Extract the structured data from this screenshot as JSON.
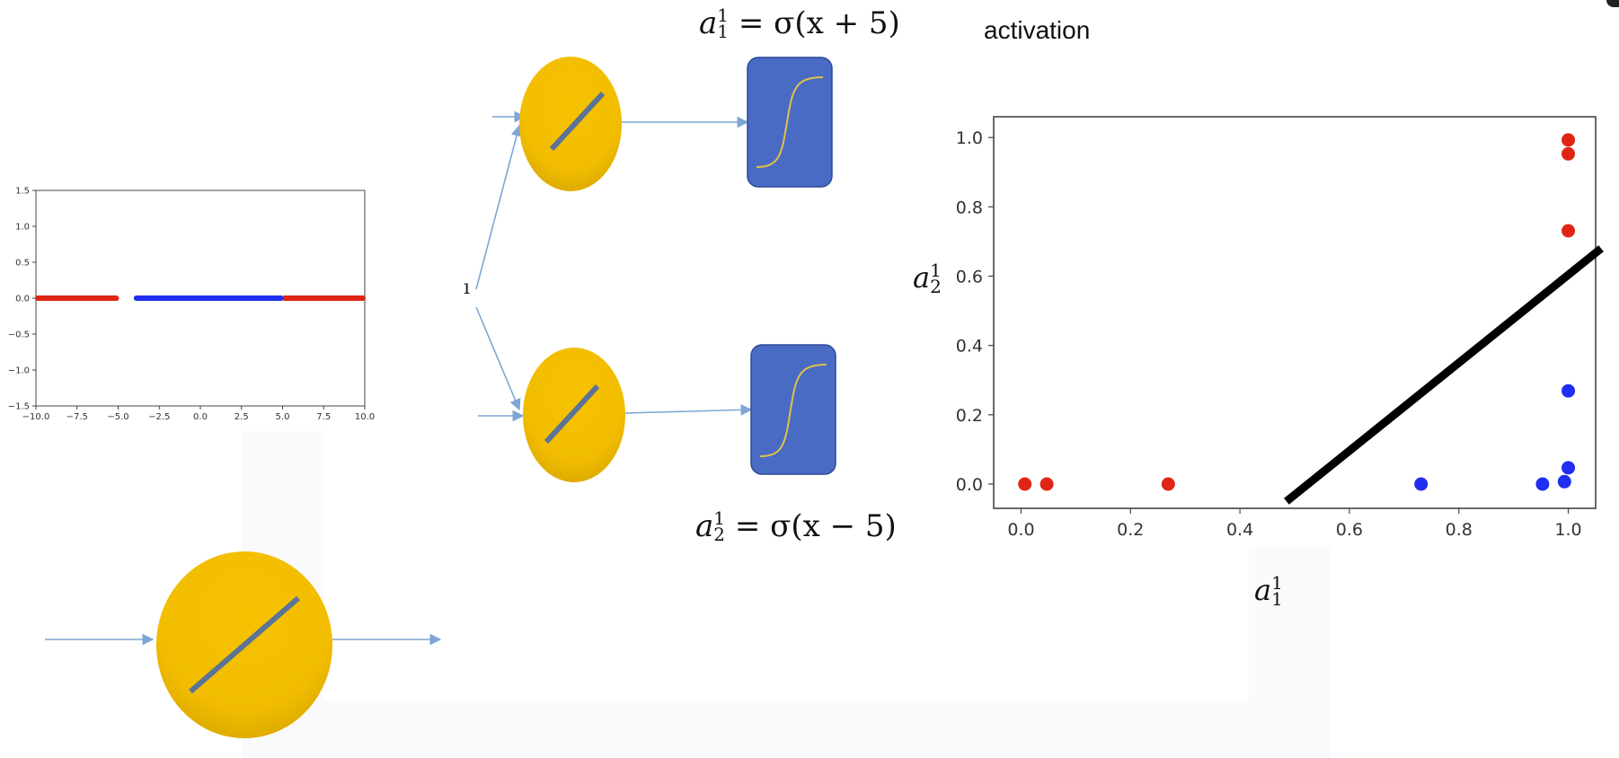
{
  "labels": {
    "eq_top": {
      "var": "a",
      "sub": "1",
      "sup": "1",
      "rhs": "= σ(x + 5)"
    },
    "eq_bottom": {
      "var": "a",
      "sub": "2",
      "sup": "1",
      "rhs": "= σ(x − 5)"
    },
    "activation": "activation",
    "cut_glyph": "ı"
  },
  "colors": {
    "neuron": "#f2bd00",
    "neuron_dark": "#d6a400",
    "sigmoid_box": "#4a6bc4",
    "sigmoid_curve": "#e0c04a",
    "arrow": "#7ea6d4",
    "line_glyph": "#5a7396",
    "red_points": "#e02515",
    "blue_points": "#1f2ef0",
    "boundary": "#000000"
  },
  "chart_data": [
    {
      "type": "scatter",
      "xlim": [
        -10,
        10
      ],
      "ylim": [
        -1.5,
        1.5
      ],
      "x_ticks": [
        "−10.0",
        "−7.5",
        "−5.0",
        "−2.5",
        "0.0",
        "2.5",
        "5.0",
        "7.5",
        "10.0"
      ],
      "y_ticks": [
        "−1.5",
        "−1.0",
        "−0.5",
        "0.0",
        "0.5",
        "1.0",
        "1.5"
      ],
      "series": [
        {
          "color": "red",
          "segments": [
            [
              -10,
              -5
            ],
            [
              5,
              10
            ]
          ],
          "y": 0
        },
        {
          "color": "blue",
          "segments": [
            [
              -4,
              5
            ]
          ],
          "y": 0
        }
      ]
    },
    {
      "type": "scatter",
      "xlim": [
        -0.05,
        1.05
      ],
      "ylim": [
        -0.07,
        1.06
      ],
      "x_ticks": [
        "0.0",
        "0.2",
        "0.4",
        "0.6",
        "0.8",
        "1.0"
      ],
      "y_ticks": [
        "0.0",
        "0.2",
        "0.4",
        "0.6",
        "0.8",
        "1.0"
      ],
      "xlabel": {
        "var": "a",
        "sub": "1",
        "sup": "1"
      },
      "ylabel": {
        "var": "a",
        "sub": "2",
        "sup": "1"
      },
      "series": [
        {
          "color": "red",
          "points": [
            [
              0.007,
              0.0
            ],
            [
              0.047,
              0.0
            ],
            [
              0.269,
              0.0
            ],
            [
              1.0,
              0.731
            ],
            [
              1.0,
              0.953
            ],
            [
              1.0,
              0.993
            ]
          ]
        },
        {
          "color": "blue",
          "points": [
            [
              0.731,
              0.0
            ],
            [
              0.953,
              0.0
            ],
            [
              0.993,
              0.007
            ],
            [
              1.0,
              0.047
            ],
            [
              1.0,
              0.269
            ]
          ]
        }
      ],
      "boundary_line": [
        [
          0.485,
          -0.05
        ],
        [
          1.06,
          0.68
        ]
      ]
    }
  ]
}
